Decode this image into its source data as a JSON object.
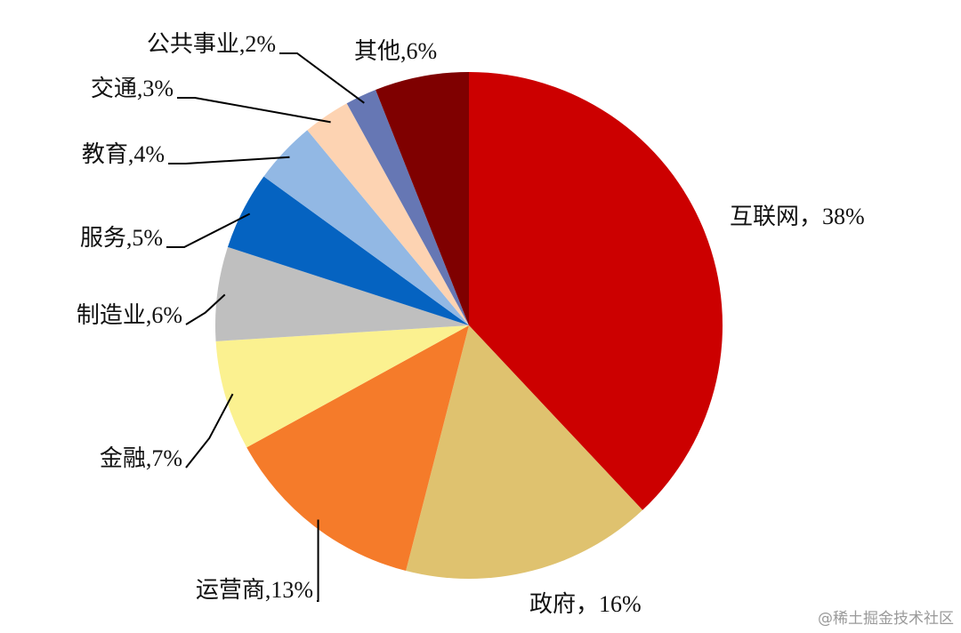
{
  "chart_data": {
    "type": "pie",
    "values": [
      38,
      16,
      13,
      7,
      6,
      5,
      4,
      3,
      2,
      6
    ],
    "value_labels": [
      "互联网，38%",
      "政府，16%",
      "运营商,13%",
      "金融,7%",
      "制造业,6%",
      "服务,5%",
      "教育,4%",
      "交通,3%",
      "公共事业,2%",
      "其他,6%"
    ],
    "colors": [
      "#cc0000",
      "#dfc26f",
      "#f57b2a",
      "#fbf190",
      "#bfbfbf",
      "#0563c1",
      "#92b8e4",
      "#fdd3b2",
      "#6677b4",
      "#7f0000"
    ],
    "watermark": "@稀土掘金技术社区"
  }
}
